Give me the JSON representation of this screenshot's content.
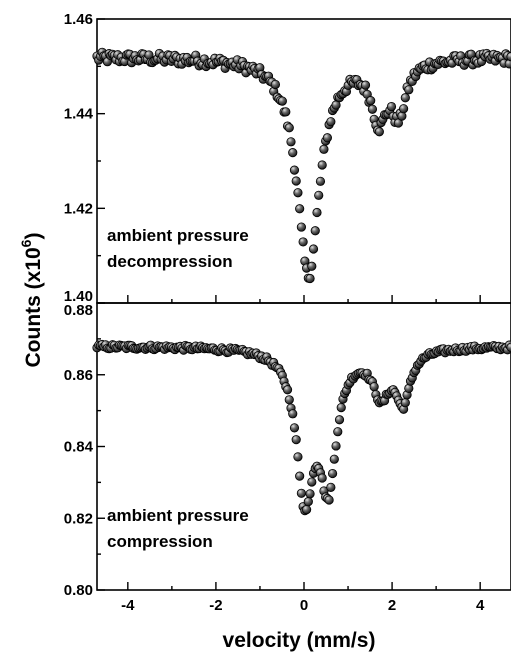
{
  "chart_data": [
    {
      "type": "scatter",
      "panel": "top",
      "annotation": [
        "ambient pressure",
        "decompression"
      ],
      "ylim": [
        1.4,
        1.46
      ],
      "yticks": [
        "1.40",
        "1.42",
        "1.44",
        "1.46"
      ],
      "xlim": [
        -4.7,
        4.7
      ],
      "curve": {
        "baseline": 1.452,
        "noise": 0.0012,
        "lines": [
          {
            "center": 0.1,
            "depth": 0.046,
            "width": 0.62
          },
          {
            "center": 1.7,
            "depth": 0.0115,
            "width": 0.42
          },
          {
            "center": 2.15,
            "depth": 0.0105,
            "width": 0.4
          }
        ]
      }
    },
    {
      "type": "scatter",
      "panel": "bottom",
      "annotation": [
        "ambient pressure",
        "compression"
      ],
      "ylim": [
        0.8,
        0.88
      ],
      "yticks": [
        "0.80",
        "0.82",
        "0.84",
        "0.86",
        "0.88"
      ],
      "xlim": [
        -4.7,
        4.7
      ],
      "xticks": [
        "-4",
        "-2",
        "0",
        "2",
        "4"
      ],
      "xtick_values": [
        -4,
        -2,
        0,
        2,
        4
      ],
      "curve": {
        "baseline": 0.868,
        "noise": 0.0007,
        "lines": [
          {
            "center": 0.02,
            "depth": 0.04,
            "width": 0.46
          },
          {
            "center": 0.55,
            "depth": 0.036,
            "width": 0.46
          },
          {
            "center": 1.75,
            "depth": 0.012,
            "width": 0.45
          },
          {
            "center": 2.25,
            "depth": 0.014,
            "width": 0.4
          }
        ]
      }
    }
  ],
  "xlabel": "velocity (mm/s)",
  "ylabel_main": "Counts (x10",
  "ylabel_sup": "6",
  "ylabel_end": ")",
  "colors": {
    "marker_fill": "#4a4a4a",
    "marker_highlight": "#c8c8c8",
    "axes": "#000000"
  }
}
